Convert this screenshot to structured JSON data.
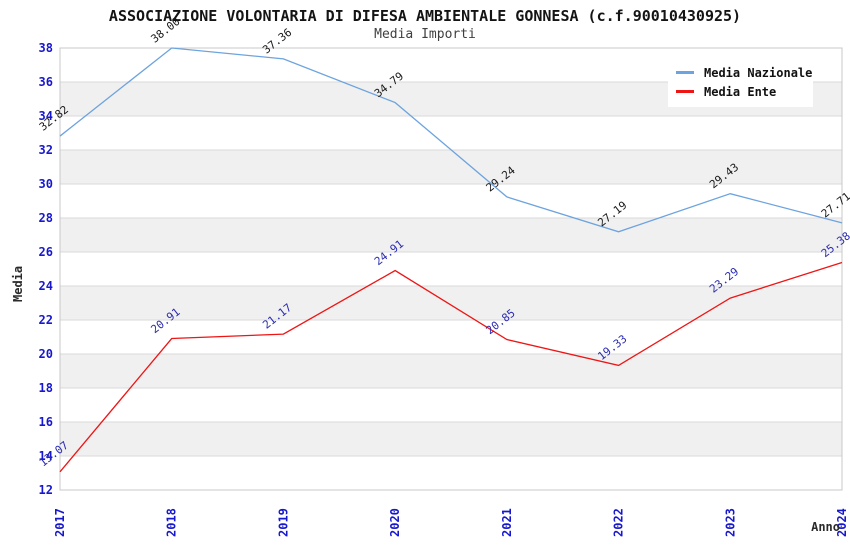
{
  "chart_data": {
    "type": "line",
    "title": "ASSOCIAZIONE VOLONTARIA DI DIFESA AMBIENTALE GONNESA (c.f.90010430925)",
    "subtitle": "Media Importi",
    "x": [
      "2017",
      "2018",
      "2019",
      "2020",
      "2021",
      "2022",
      "2023",
      "2024"
    ],
    "series": [
      {
        "name": "Media Nazionale",
        "color": "#6da3de",
        "label_color": "#1a1a1a",
        "values": [
          32.82,
          38.0,
          37.36,
          34.79,
          29.24,
          27.19,
          29.43,
          27.71
        ]
      },
      {
        "name": "Media Ente",
        "color": "#ee1515",
        "label_color": "#2c2cb0",
        "values": [
          13.07,
          20.91,
          21.17,
          24.91,
          20.85,
          19.33,
          23.29,
          25.38
        ]
      }
    ],
    "xlabel": "Anno",
    "ylabel": "Media",
    "ylim": [
      12,
      38
    ],
    "ytick_step": 2,
    "grid": true,
    "legend_position": "top-right",
    "value_label_decimals": 2,
    "colors": {
      "band": "#f0f0f0",
      "grid": "#dadada",
      "border": "#c8c8c8",
      "tick": "#1717cd",
      "background": "#ffffff"
    }
  }
}
